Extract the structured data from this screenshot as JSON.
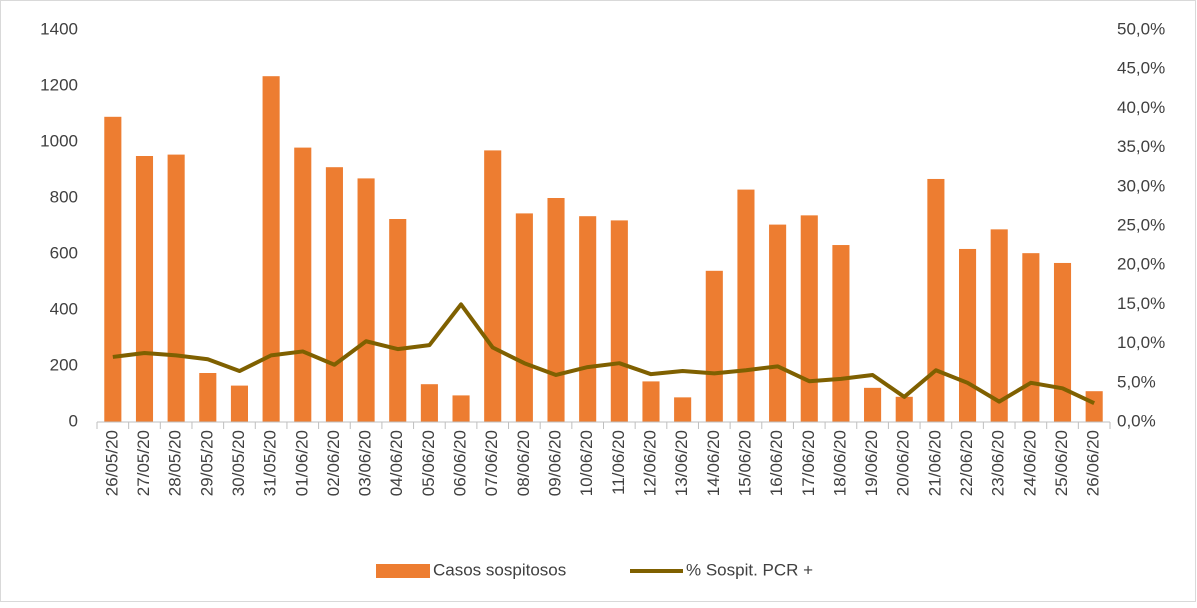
{
  "chart_data": {
    "type": "bar-line",
    "categories": [
      "26/05/20",
      "27/05/20",
      "28/05/20",
      "29/05/20",
      "30/05/20",
      "31/05/20",
      "01/06/20",
      "02/06/20",
      "03/06/20",
      "04/06/20",
      "05/06/20",
      "06/06/20",
      "07/06/20",
      "08/06/20",
      "09/06/20",
      "10/06/20",
      "11/06/20",
      "12/06/20",
      "13/06/20",
      "14/06/20",
      "15/06/20",
      "16/06/20",
      "17/06/20",
      "18/06/20",
      "19/06/20",
      "20/06/20",
      "21/06/20",
      "22/06/20",
      "23/06/20",
      "24/06/20",
      "25/06/20",
      "26/06/20"
    ],
    "series": [
      {
        "name": "Casos sospitosos",
        "type": "bar",
        "color": "#ed7d31",
        "values": [
          1090,
          950,
          955,
          175,
          130,
          1235,
          980,
          910,
          870,
          725,
          135,
          95,
          970,
          745,
          800,
          735,
          720,
          145,
          88,
          540,
          830,
          705,
          738,
          632,
          122,
          90,
          868,
          618,
          688,
          603,
          568,
          110
        ]
      },
      {
        "name": "% Sospit. PCR +",
        "type": "line",
        "axis": "y2",
        "color": "#7f6000",
        "values": [
          8.3,
          8.8,
          8.5,
          8.0,
          6.5,
          8.5,
          9.0,
          7.3,
          10.3,
          9.3,
          9.8,
          15.0,
          9.5,
          7.5,
          6.0,
          7.0,
          7.5,
          6.1,
          6.5,
          6.2,
          6.6,
          7.1,
          5.2,
          5.5,
          6.0,
          3.2,
          6.6,
          5.0,
          2.6,
          5.0,
          4.3,
          2.4
        ]
      }
    ],
    "ylim": [
      0,
      1400
    ],
    "yticks": [
      0,
      200,
      400,
      600,
      800,
      1000,
      1200,
      1400
    ],
    "y2lim": [
      0,
      50
    ],
    "y2ticks": [
      {
        "value": 0,
        "label": "0,0%"
      },
      {
        "value": 5,
        "label": "5,0%"
      },
      {
        "value": 10,
        "label": "10,0%"
      },
      {
        "value": 15,
        "label": "15,0%"
      },
      {
        "value": 20,
        "label": "20,0%"
      },
      {
        "value": 25,
        "label": "25,0%"
      },
      {
        "value": 30,
        "label": "30,0%"
      },
      {
        "value": 35,
        "label": "35,0%"
      },
      {
        "value": 40,
        "label": "40,0%"
      },
      {
        "value": 45,
        "label": "45,0%"
      },
      {
        "value": 50,
        "label": "50,0%"
      }
    ],
    "grid": false,
    "legend": "bottom"
  }
}
